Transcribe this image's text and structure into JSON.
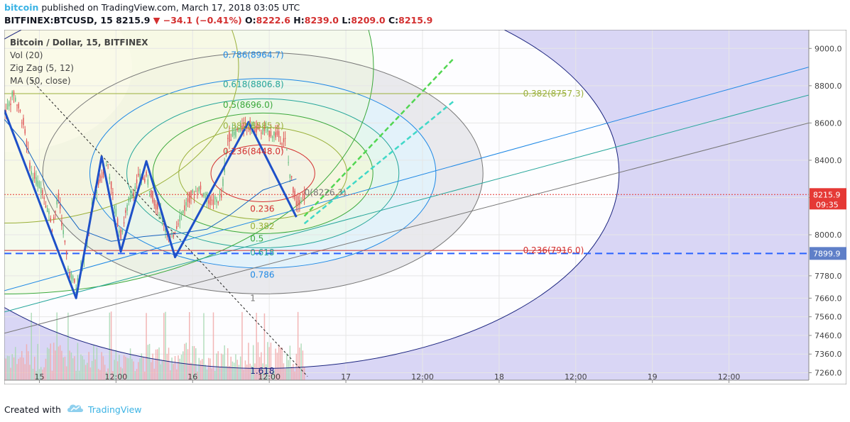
{
  "header": {
    "brand": "bitcoin",
    "published": "published on TradingView.com, March 17, 2018 03:05 UTC",
    "symbol": "BITFINEX:BTCUSD, 15",
    "price": "8215.9",
    "arrow": "▼",
    "change": "−34.1 (−0.41%)",
    "open_label": "O:",
    "open": "8222.6",
    "high_label": "H:",
    "high": "8239.0",
    "low_label": "L:",
    "low": "8209.0",
    "close_label": "C:",
    "close": "8215.9"
  },
  "legend": [
    "Bitcoin / Dollar, 15, BITFINEX",
    "Vol (20)",
    "Zig Zag (5, 12)",
    "MA (50, close)"
  ],
  "footer": {
    "created_with": "Created with",
    "brand": "TradingView"
  },
  "colors": {
    "zigzag": "#1e50c8",
    "candle_up": "#6cbf84",
    "candle_down": "#e05a5a",
    "ma": "#1565c0",
    "price_line": "#e53935",
    "dashed_line": "#2962ff",
    "fib_red": "#d32f2f",
    "fib_olive": "#9ab03a",
    "fib_green": "#3aa83a",
    "fib_teal": "#26a69a",
    "fib_blue": "#1e88e5",
    "fib_gray": "#777777",
    "fib_navy": "#1a237e",
    "purple_zone": "#d9d6f5",
    "label_bg_price": "#e53935",
    "label_bg_dashed": "#5f7fc8"
  },
  "chart_data": {
    "type": "candlestick",
    "title": "Bitcoin / Dollar, 15, BITFINEX",
    "ylim": [
      7220,
      9100
    ],
    "y_ticks": [
      9000,
      8800,
      8600,
      8400,
      8200,
      8000,
      7780,
      7660,
      7560,
      7460,
      7360,
      7260
    ],
    "y_tick_labels": [
      "9000.0",
      "8800.0",
      "8600.0",
      "8400.0",
      "8200.0",
      "8000.0",
      "7780.0",
      "7660.0",
      "7560.0",
      "7460.0",
      "7360.0",
      "7260.0"
    ],
    "x_ticks": [
      {
        "label": "15",
        "t": 10
      },
      {
        "label": "12:00",
        "t": 58
      },
      {
        "label": "16",
        "t": 106
      },
      {
        "label": "12:00",
        "t": 154
      },
      {
        "label": "17",
        "t": 202
      },
      {
        "label": "12:00",
        "t": 250
      },
      {
        "label": "18",
        "t": 298
      },
      {
        "label": "12:00",
        "t": 346
      },
      {
        "label": "19",
        "t": 394
      },
      {
        "label": "12:00",
        "t": 442
      }
    ],
    "xlim": [
      -12,
      492
    ],
    "zigzag": [
      {
        "t": -12,
        "v": 8670
      },
      {
        "t": 33,
        "v": 7660
      },
      {
        "t": 49,
        "v": 8420
      },
      {
        "t": 61,
        "v": 7910
      },
      {
        "t": 77,
        "v": 8395
      },
      {
        "t": 95,
        "v": 7880
      },
      {
        "t": 141,
        "v": 8605
      },
      {
        "t": 171,
        "v": 8095
      }
    ],
    "ma_points": [
      {
        "t": -12,
        "v": 8620
      },
      {
        "t": 0,
        "v": 8500
      },
      {
        "t": 15,
        "v": 8260
      },
      {
        "t": 35,
        "v": 8030
      },
      {
        "t": 55,
        "v": 7965
      },
      {
        "t": 75,
        "v": 7990
      },
      {
        "t": 100,
        "v": 8010
      },
      {
        "t": 115,
        "v": 8030
      },
      {
        "t": 130,
        "v": 8110
      },
      {
        "t": 150,
        "v": 8240
      },
      {
        "t": 171,
        "v": 8300
      }
    ],
    "fib_ellipse_center": {
      "t": 150,
      "v": 8330
    },
    "fib_circle_levels": [
      {
        "label": "0.236",
        "ratio": 0.236,
        "color": "#d32f2f"
      },
      {
        "label": "0.382",
        "ratio": 0.382,
        "color": "#9ab03a"
      },
      {
        "label": "0.5",
        "ratio": 0.5,
        "color": "#3aa83a"
      },
      {
        "label": "0.618",
        "ratio": 0.618,
        "color": "#26a69a"
      },
      {
        "label": "0.786",
        "ratio": 0.786,
        "color": "#1e88e5"
      },
      {
        "label": "1",
        "ratio": 1.0,
        "color": "#777777"
      },
      {
        "label": "1.618",
        "ratio": 1.618,
        "color": "#1a237e"
      }
    ],
    "fib_price_labels": [
      {
        "text": "0.786(8964.7)",
        "v": 8964.7,
        "t": 125,
        "color": "#1e88e5"
      },
      {
        "text": "0.618(8806.8)",
        "v": 8806.8,
        "t": 125,
        "color": "#26a69a"
      },
      {
        "text": "0.5(8696.0)",
        "v": 8696.0,
        "t": 125,
        "color": "#3aa83a"
      },
      {
        "text": "0.382(8585.2)",
        "v": 8585.2,
        "t": 125,
        "color": "#9ab03a"
      },
      {
        "text": "0.236(8448.0)",
        "v": 8448.0,
        "t": 125,
        "color": "#d32f2f"
      },
      {
        "text": "0(8226.3)",
        "v": 8226.3,
        "t": 176,
        "color": "#777777"
      },
      {
        "text": "0.382(8757.3)",
        "v": 8757.3,
        "t": 313,
        "color": "#9ab03a"
      },
      {
        "text": "0.236(7916.0)",
        "v": 7916.0,
        "t": 313,
        "color": "#d32f2f"
      }
    ],
    "fib_ratio_labels": [
      {
        "text": "0.236",
        "t": 142,
        "v": 8140,
        "color": "#d32f2f"
      },
      {
        "text": "0.382",
        "t": 142,
        "v": 8045,
        "color": "#9ab03a"
      },
      {
        "text": "0.5",
        "t": 142,
        "v": 7980,
        "color": "#3aa83a"
      },
      {
        "text": "0.618",
        "t": 142,
        "v": 7905,
        "color": "#26a69a"
      },
      {
        "text": "0.786",
        "t": 142,
        "v": 7785,
        "color": "#1e88e5"
      },
      {
        "text": "1",
        "t": 142,
        "v": 7660,
        "color": "#777777"
      },
      {
        "text": "1.618",
        "t": 142,
        "v": 7270,
        "color": "#1a237e"
      }
    ],
    "current_price": {
      "value": 8215.9,
      "label": "8215.9",
      "countdown": "09:35"
    },
    "dashed_level": {
      "value": 7899.9,
      "label": "7899.9"
    },
    "horizontal_levels": [
      {
        "value": 8757.3,
        "color": "#9ab03a"
      },
      {
        "value": 7916.0,
        "color": "#d32f2f"
      }
    ],
    "candle_path": [
      {
        "t": -12,
        "v": 8650
      },
      {
        "t": -6,
        "v": 8760
      },
      {
        "t": 0,
        "v": 8600
      },
      {
        "t": 5,
        "v": 8330
      },
      {
        "t": 12,
        "v": 8240
      },
      {
        "t": 18,
        "v": 8050
      },
      {
        "t": 22,
        "v": 8200
      },
      {
        "t": 28,
        "v": 7820
      },
      {
        "t": 33,
        "v": 7720
      },
      {
        "t": 38,
        "v": 7880
      },
      {
        "t": 44,
        "v": 8200
      },
      {
        "t": 49,
        "v": 8320
      },
      {
        "t": 53,
        "v": 8380
      },
      {
        "t": 57,
        "v": 8150
      },
      {
        "t": 61,
        "v": 8000
      },
      {
        "t": 66,
        "v": 8180
      },
      {
        "t": 72,
        "v": 8300
      },
      {
        "t": 77,
        "v": 8310
      },
      {
        "t": 82,
        "v": 8180
      },
      {
        "t": 87,
        "v": 8100
      },
      {
        "t": 92,
        "v": 7960
      },
      {
        "t": 97,
        "v": 8080
      },
      {
        "t": 104,
        "v": 8200
      },
      {
        "t": 110,
        "v": 8250
      },
      {
        "t": 118,
        "v": 8170
      },
      {
        "t": 124,
        "v": 8200
      },
      {
        "t": 128,
        "v": 8520
      },
      {
        "t": 134,
        "v": 8560
      },
      {
        "t": 141,
        "v": 8590
      },
      {
        "t": 150,
        "v": 8560
      },
      {
        "t": 158,
        "v": 8540
      },
      {
        "t": 164,
        "v": 8500
      },
      {
        "t": 167,
        "v": 8330
      },
      {
        "t": 171,
        "v": 8170
      },
      {
        "t": 176,
        "v": 8215
      }
    ]
  }
}
